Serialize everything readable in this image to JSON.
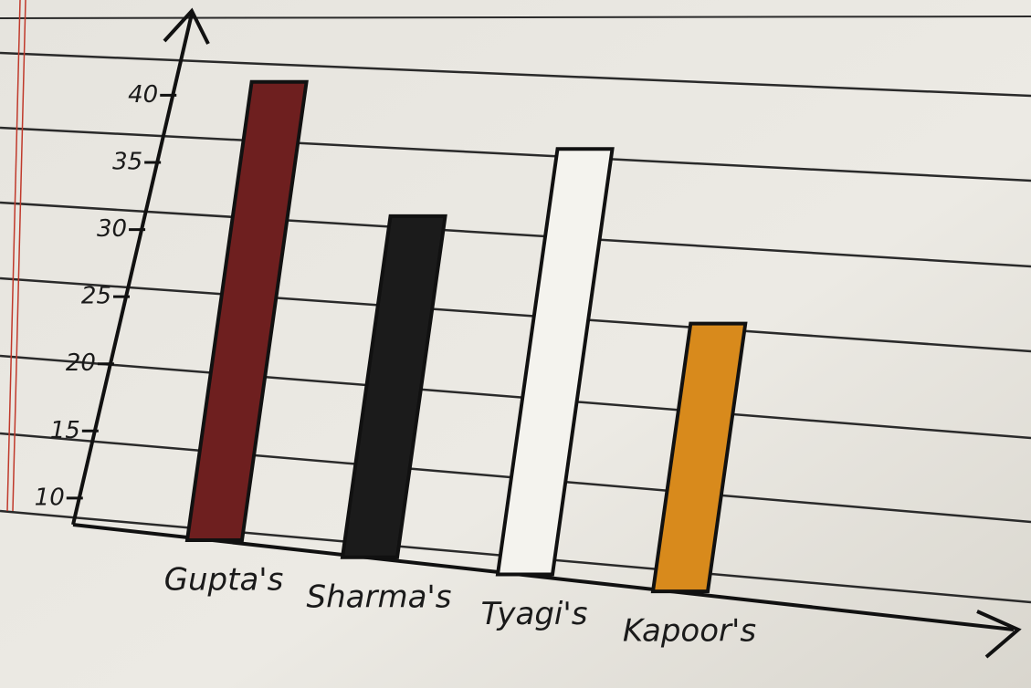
{
  "chart_data": {
    "type": "bar",
    "categories": [
      "Gupta's",
      "Sharma's",
      "Tyagi's",
      "Kapoor's"
    ],
    "values": [
      41,
      31,
      36,
      23
    ],
    "colors": [
      "#6e1f1f",
      "#1b1b1b",
      "#f4f3ee",
      "#d88a1c"
    ],
    "ylim": [
      7,
      42
    ],
    "yticks": [
      10,
      15,
      20,
      25,
      30,
      35,
      40
    ]
  }
}
